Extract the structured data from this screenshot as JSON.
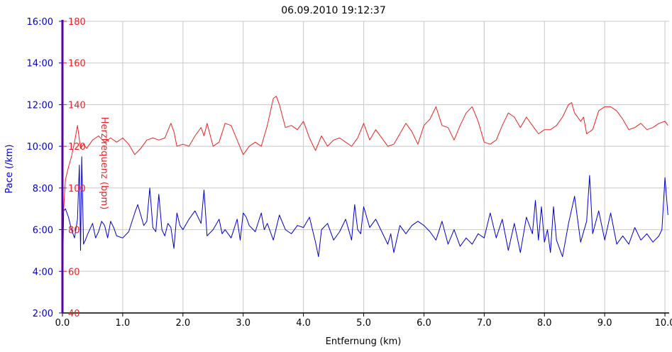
{
  "chart_data": {
    "type": "line",
    "title": "06.09.2010 19:12:37",
    "xlabel": "Entfernung (km)",
    "ylabel": "Pace (/km)",
    "y2label": "Herzfrequenz (bpm)",
    "xlim": [
      0,
      10.07
    ],
    "x_ticks": [
      "0.0",
      "1.0",
      "2.0",
      "3.0",
      "4.0",
      "5.0",
      "6.0",
      "7.0",
      "8.0",
      "9.0",
      "10.0"
    ],
    "ylim": [
      2,
      16
    ],
    "y_ticks": [
      "2:00",
      "4:00",
      "6:00",
      "8:00",
      "10:00",
      "12:00",
      "14:00",
      "16:00"
    ],
    "y2lim": [
      40,
      180
    ],
    "y2_ticks": [
      "40",
      "60",
      "80",
      "100",
      "120",
      "140",
      "160",
      "180"
    ],
    "grid": true,
    "colors": {
      "pace": "#0000cc",
      "heart_rate": "#ee2222",
      "grid": "#c8c8c8",
      "axis": "#000000",
      "left_axis": "#5500aa"
    },
    "series": [
      {
        "name": "Pace (/km)",
        "axis": "left",
        "x": [
          0.0,
          0.02,
          0.05,
          0.1,
          0.15,
          0.2,
          0.25,
          0.28,
          0.3,
          0.32,
          0.35,
          0.38,
          0.42,
          0.5,
          0.55,
          0.6,
          0.65,
          0.7,
          0.75,
          0.8,
          0.85,
          0.9,
          1.0,
          1.1,
          1.2,
          1.25,
          1.3,
          1.35,
          1.4,
          1.45,
          1.5,
          1.55,
          1.6,
          1.65,
          1.7,
          1.75,
          1.8,
          1.85,
          1.9,
          1.95,
          2.0,
          2.1,
          2.2,
          2.3,
          2.35,
          2.4,
          2.5,
          2.6,
          2.65,
          2.7,
          2.8,
          2.9,
          2.95,
          3.0,
          3.05,
          3.1,
          3.2,
          3.3,
          3.35,
          3.4,
          3.5,
          3.6,
          3.7,
          3.8,
          3.9,
          4.0,
          4.1,
          4.2,
          4.25,
          4.3,
          4.4,
          4.5,
          4.6,
          4.7,
          4.8,
          4.85,
          4.9,
          4.95,
          5.0,
          5.1,
          5.2,
          5.3,
          5.4,
          5.45,
          5.5,
          5.6,
          5.7,
          5.8,
          5.9,
          6.0,
          6.1,
          6.2,
          6.3,
          6.4,
          6.5,
          6.6,
          6.7,
          6.8,
          6.9,
          7.0,
          7.1,
          7.2,
          7.3,
          7.4,
          7.5,
          7.6,
          7.7,
          7.8,
          7.85,
          7.9,
          7.95,
          8.0,
          8.05,
          8.1,
          8.15,
          8.2,
          8.3,
          8.4,
          8.5,
          8.6,
          8.7,
          8.75,
          8.8,
          8.9,
          9.0,
          9.1,
          9.2,
          9.3,
          9.4,
          9.5,
          9.6,
          9.7,
          9.8,
          9.9,
          9.95,
          10.0,
          10.05
        ],
        "values": [
          3.1,
          6.9,
          7.0,
          6.6,
          6.0,
          5.6,
          6.5,
          9.1,
          5.0,
          9.5,
          5.3,
          5.5,
          5.8,
          6.3,
          5.6,
          5.9,
          6.4,
          6.2,
          5.6,
          6.4,
          6.1,
          5.7,
          5.6,
          5.9,
          6.8,
          7.2,
          6.7,
          6.2,
          6.4,
          8.0,
          6.1,
          5.9,
          7.7,
          6.0,
          5.7,
          6.3,
          6.1,
          5.1,
          6.8,
          6.2,
          6.0,
          6.5,
          6.9,
          6.3,
          7.9,
          5.7,
          6.0,
          6.5,
          5.8,
          6.0,
          5.6,
          6.5,
          5.5,
          6.8,
          6.6,
          6.2,
          5.9,
          6.8,
          6.0,
          6.3,
          5.5,
          6.7,
          6.0,
          5.8,
          6.2,
          6.1,
          6.6,
          5.4,
          4.7,
          6.0,
          6.3,
          5.5,
          5.9,
          6.5,
          5.5,
          7.2,
          6.0,
          5.8,
          7.1,
          6.1,
          6.5,
          5.9,
          5.3,
          5.8,
          4.9,
          6.2,
          5.8,
          6.2,
          6.4,
          6.2,
          5.9,
          5.5,
          6.4,
          5.3,
          6.0,
          5.2,
          5.6,
          5.3,
          5.8,
          5.6,
          6.8,
          5.6,
          6.5,
          5.0,
          6.3,
          4.9,
          6.6,
          5.8,
          7.4,
          5.5,
          7.1,
          5.4,
          6.0,
          4.9,
          7.1,
          5.5,
          4.7,
          6.3,
          7.6,
          5.4,
          6.4,
          8.6,
          5.8,
          6.9,
          5.5,
          6.8,
          5.3,
          5.7,
          5.3,
          6.1,
          5.5,
          5.8,
          5.4,
          5.7,
          6.0,
          8.5,
          6.7
        ]
      },
      {
        "name": "Herzfrequenz (bpm)",
        "axis": "right",
        "x": [
          0.0,
          0.05,
          0.1,
          0.15,
          0.2,
          0.25,
          0.3,
          0.35,
          0.4,
          0.5,
          0.6,
          0.7,
          0.8,
          0.9,
          1.0,
          1.1,
          1.2,
          1.3,
          1.4,
          1.5,
          1.6,
          1.7,
          1.8,
          1.85,
          1.9,
          2.0,
          2.1,
          2.2,
          2.3,
          2.35,
          2.4,
          2.5,
          2.6,
          2.7,
          2.8,
          2.9,
          3.0,
          3.1,
          3.2,
          3.3,
          3.4,
          3.5,
          3.55,
          3.6,
          3.7,
          3.8,
          3.9,
          4.0,
          4.1,
          4.2,
          4.3,
          4.4,
          4.5,
          4.6,
          4.7,
          4.8,
          4.9,
          5.0,
          5.1,
          5.2,
          5.3,
          5.4,
          5.5,
          5.6,
          5.7,
          5.8,
          5.9,
          6.0,
          6.1,
          6.2,
          6.3,
          6.4,
          6.5,
          6.6,
          6.7,
          6.8,
          6.9,
          7.0,
          7.1,
          7.2,
          7.3,
          7.4,
          7.5,
          7.6,
          7.7,
          7.8,
          7.9,
          8.0,
          8.1,
          8.2,
          8.3,
          8.4,
          8.45,
          8.5,
          8.6,
          8.65,
          8.7,
          8.8,
          8.9,
          9.0,
          9.1,
          9.2,
          9.3,
          9.4,
          9.5,
          9.6,
          9.7,
          9.8,
          9.9,
          10.0,
          10.05
        ],
        "values": [
          80,
          104,
          110,
          115,
          122,
          130,
          119,
          121,
          119,
          123,
          125,
          122,
          124,
          122,
          124,
          121,
          116,
          119,
          123,
          124,
          123,
          124,
          131,
          127,
          120,
          121,
          120,
          125,
          129,
          125,
          131,
          120,
          122,
          131,
          130,
          123,
          116,
          120,
          122,
          120,
          130,
          143,
          144,
          140,
          129,
          130,
          128,
          132,
          124,
          118,
          125,
          120,
          123,
          124,
          122,
          120,
          124,
          131,
          123,
          128,
          124,
          120,
          121,
          126,
          131,
          127,
          121,
          130,
          133,
          139,
          130,
          129,
          123,
          130,
          136,
          139,
          132,
          122,
          121,
          123,
          130,
          136,
          134,
          129,
          134,
          130,
          126,
          128,
          128,
          130,
          134,
          140,
          141,
          136,
          132,
          134,
          126,
          128,
          137,
          139,
          139,
          137,
          133,
          128,
          129,
          131,
          128,
          129,
          131,
          132,
          130
        ]
      }
    ]
  }
}
